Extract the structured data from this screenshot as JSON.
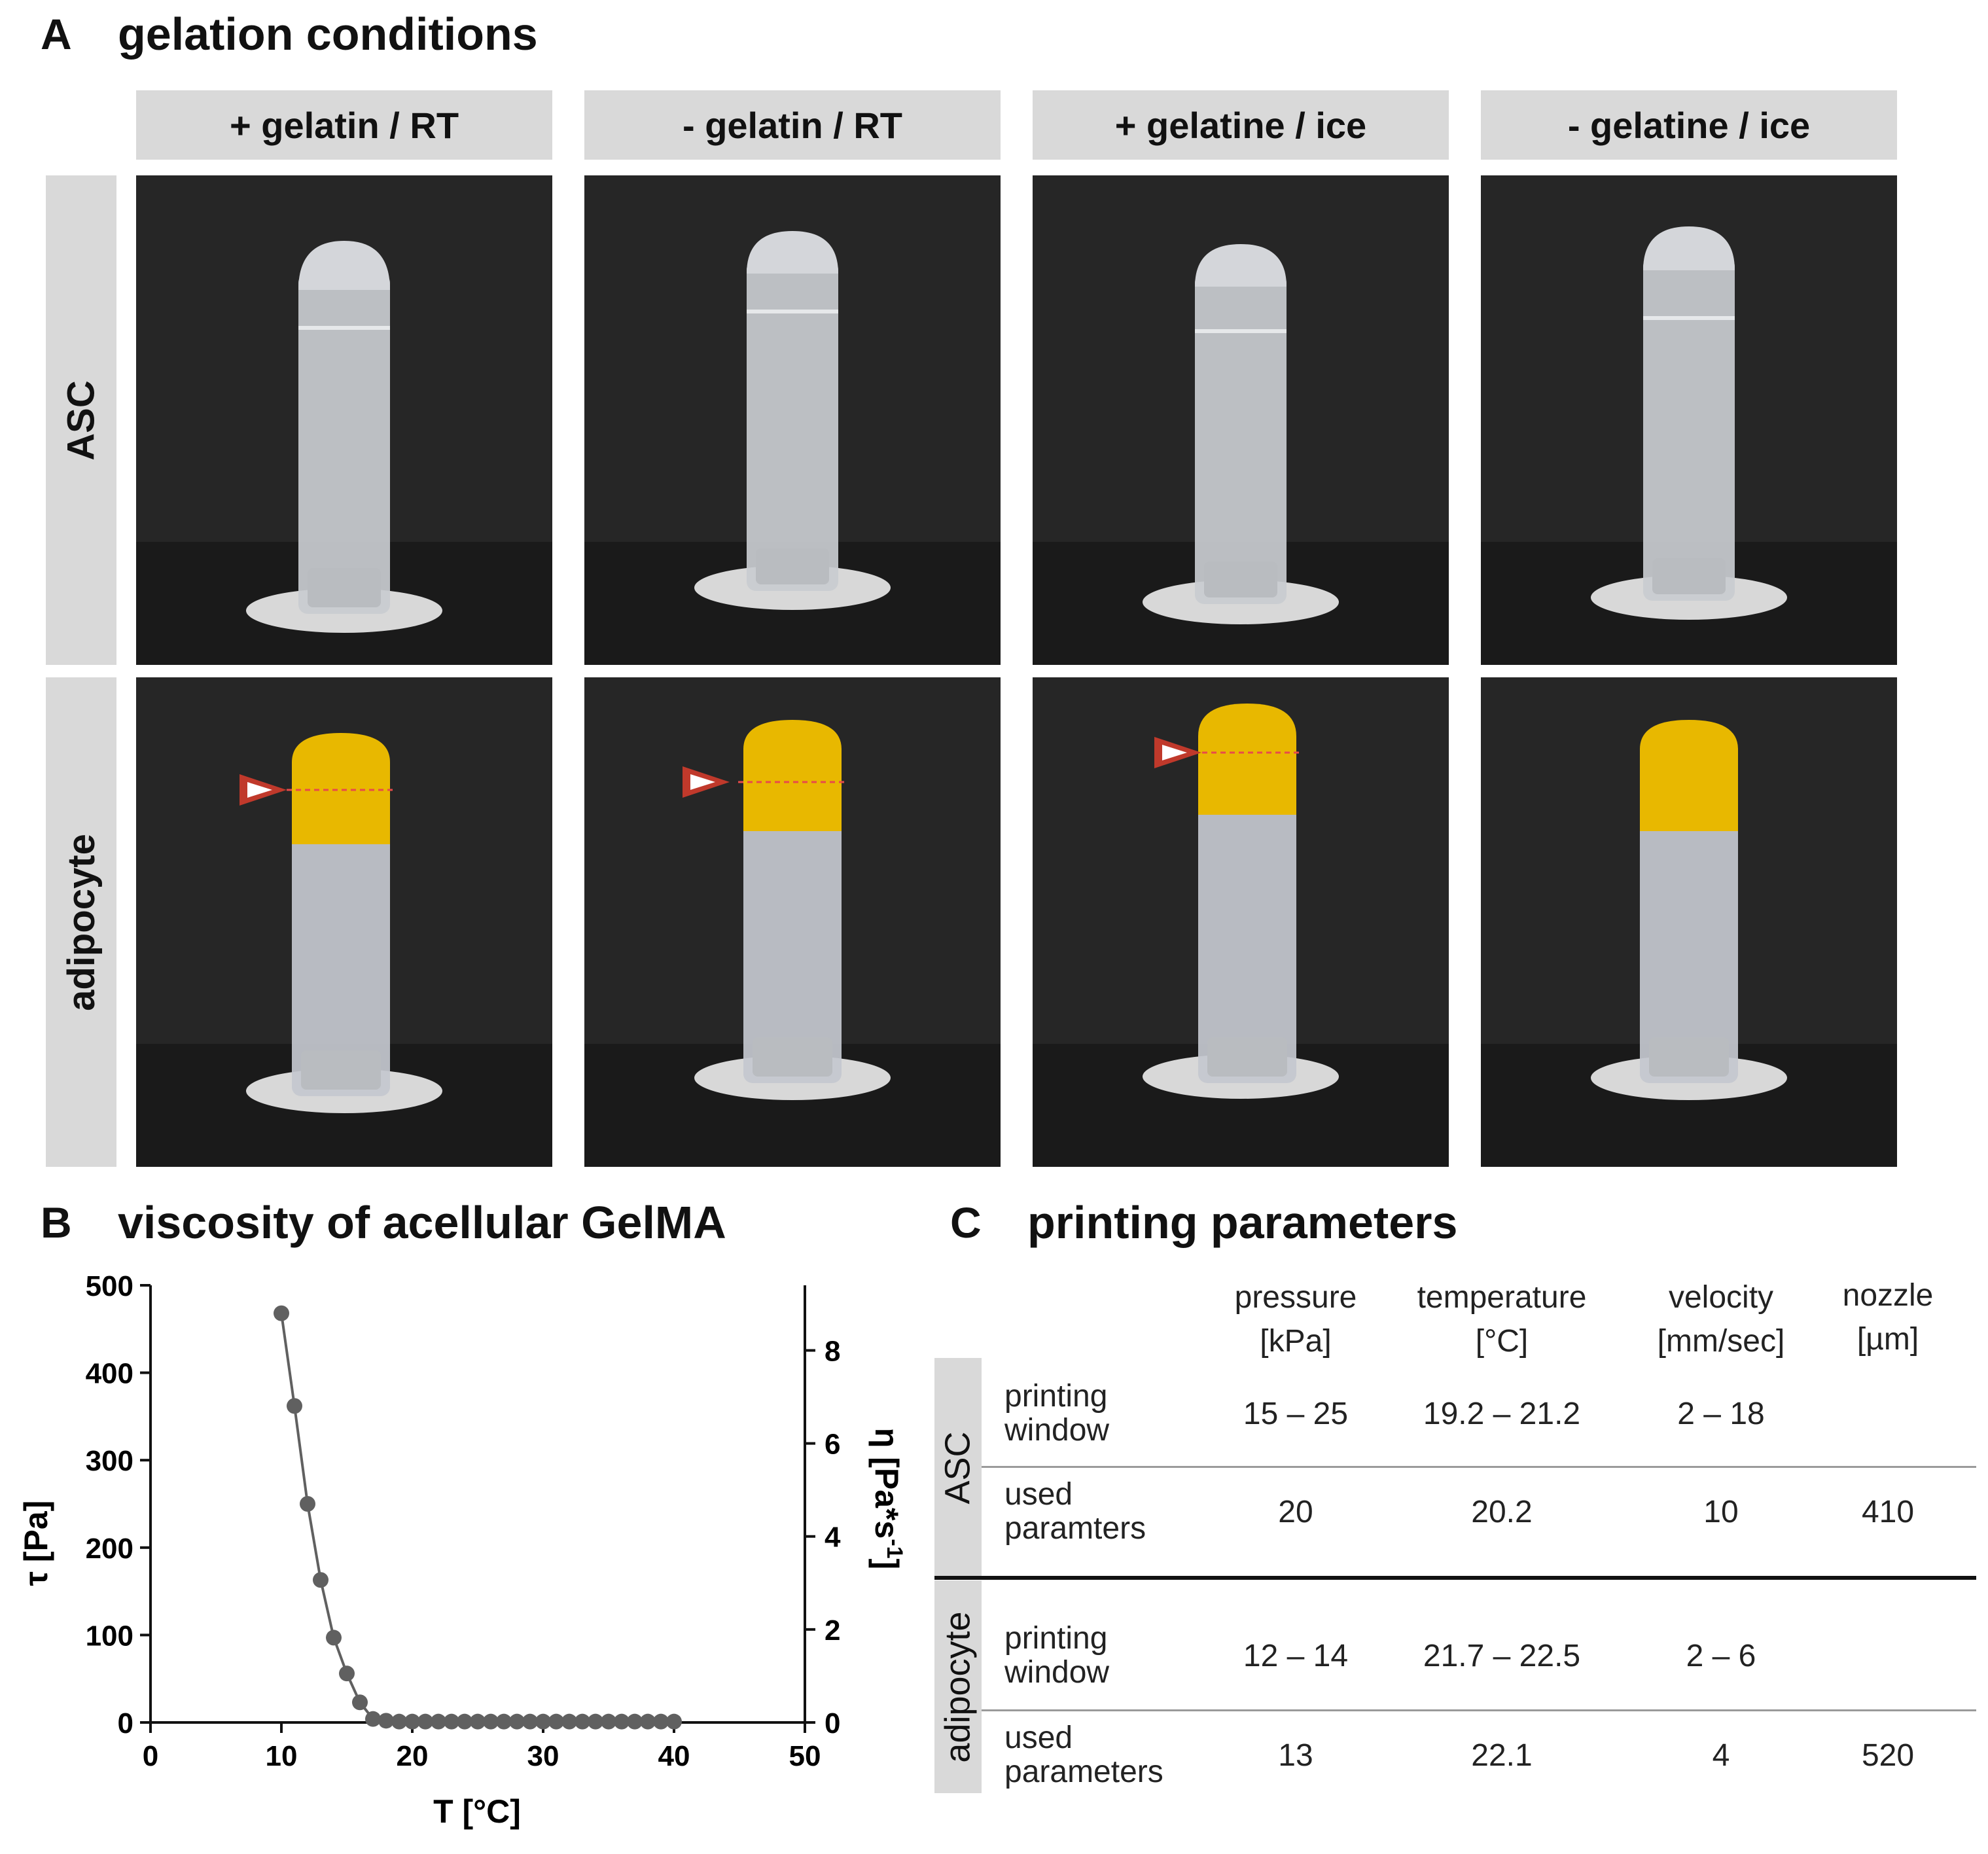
{
  "panel_a": {
    "letter": "A",
    "title": "gelation conditions",
    "columns": [
      "+ gelatin / RT",
      "- gelatin / RT",
      "+ gelatine / ice",
      "- gelatine / ice"
    ],
    "rows": [
      "ASC",
      "adipocyte"
    ]
  },
  "panel_b": {
    "letter": "B",
    "title": "viscosity of acellular GelMA"
  },
  "panel_c": {
    "letter": "C",
    "title": "printing parameters",
    "headers": [
      {
        "line1": "pressure",
        "line2": "[kPa]"
      },
      {
        "line1": "temperature",
        "line2": "[°C]"
      },
      {
        "line1": "velocity",
        "line2": "[mm/sec]"
      },
      {
        "line1": "nozzle",
        "line2": "[µm]"
      }
    ],
    "groups": [
      {
        "name": "ASC",
        "rows": [
          {
            "label1": "printing",
            "label2": "window",
            "pressure": "15 – 25",
            "temperature": "19.2 – 21.2",
            "velocity": "2 – 18",
            "nozzle": ""
          },
          {
            "label1": "used",
            "label2": "paramters",
            "pressure": "20",
            "temperature": "20.2",
            "velocity": "10",
            "nozzle": "410"
          }
        ]
      },
      {
        "name": "adipocyte",
        "rows": [
          {
            "label1": "printing",
            "label2": "window",
            "pressure": "12 – 14",
            "temperature": "21.7 – 22.5",
            "velocity": "2 – 6",
            "nozzle": ""
          },
          {
            "label1": "used",
            "label2": "parameters",
            "pressure": "13",
            "temperature": "22.1",
            "velocity": "4",
            "nozzle": "520"
          }
        ]
      }
    ]
  },
  "colors": {
    "header_gray": "#d9d9d9",
    "marker_gray": "#606060",
    "arrow_red": "#c0392b",
    "gel_yellow": "#e8b800"
  },
  "chart_data": {
    "type": "scatter",
    "title": "viscosity of acellular GelMA",
    "xlabel": "T [°C]",
    "ylabel": "τ [Pa]",
    "y2label": "η [Pa*s-1]",
    "xlim": [
      0,
      50
    ],
    "ylim": [
      0,
      500
    ],
    "y2lim": [
      0,
      9.4
    ],
    "xticks": [
      0,
      10,
      20,
      30,
      40,
      50
    ],
    "yticks": [
      0,
      100,
      200,
      300,
      400,
      500
    ],
    "y2ticks": [
      0,
      2,
      4,
      6,
      8
    ],
    "grid": false,
    "series": [
      {
        "x": [
          10,
          11,
          12,
          13,
          14,
          15,
          16,
          17,
          18,
          19,
          20,
          21,
          22,
          23,
          24,
          25,
          26,
          27,
          28,
          29,
          30,
          31,
          32,
          33,
          34,
          35,
          36,
          37,
          38,
          39,
          40
        ],
        "values": [
          468,
          362,
          250,
          163,
          97,
          56,
          23,
          4,
          2,
          1,
          1,
          1,
          1,
          1,
          1,
          1,
          1,
          1,
          1,
          1,
          1,
          1,
          1,
          1,
          1,
          1,
          1,
          1,
          1,
          1,
          1
        ]
      }
    ]
  }
}
